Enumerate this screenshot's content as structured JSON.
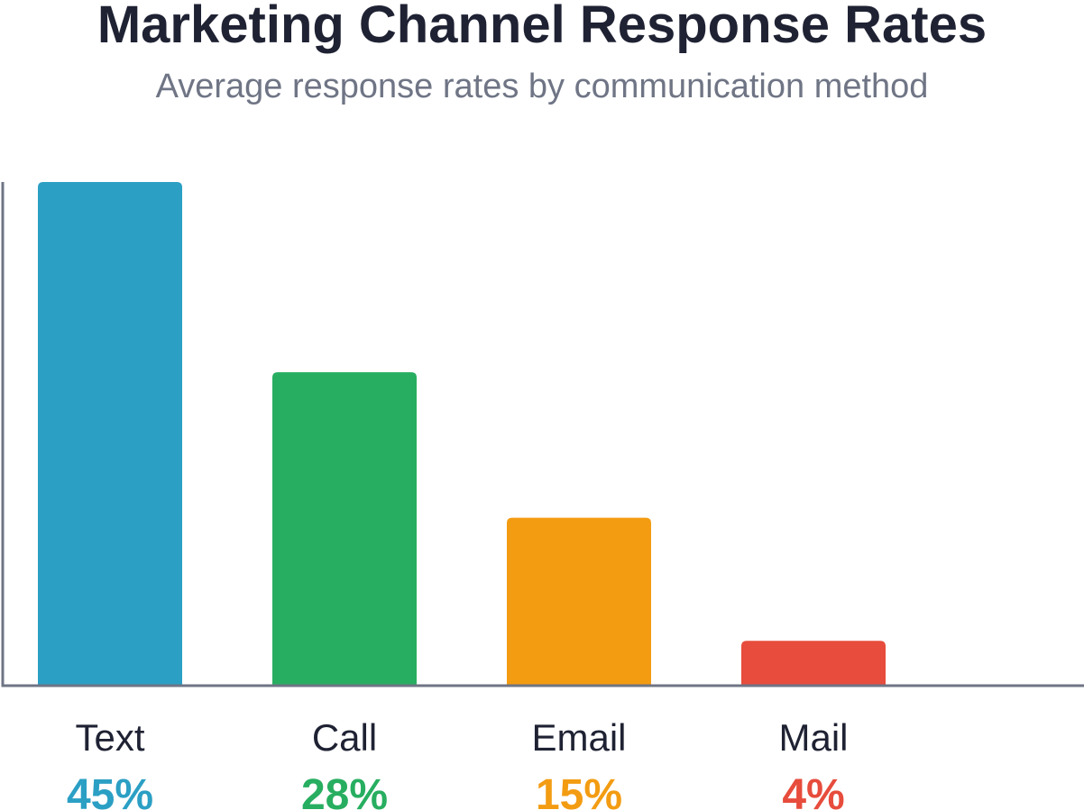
{
  "chart_data": {
    "type": "bar",
    "title": "Marketing Channel Response Rates",
    "subtitle": "Average response rates by communication method",
    "categories": [
      "Text",
      "Call",
      "Email",
      "Mail"
    ],
    "values": [
      45,
      28,
      15,
      4
    ],
    "value_labels": [
      "45%",
      "28%",
      "15%",
      "4%"
    ],
    "colors": [
      "#2b9fc4",
      "#27ae60",
      "#f39c12",
      "#e74c3c"
    ],
    "axis_color": "#6f7585",
    "grid": false,
    "legend": "none"
  }
}
